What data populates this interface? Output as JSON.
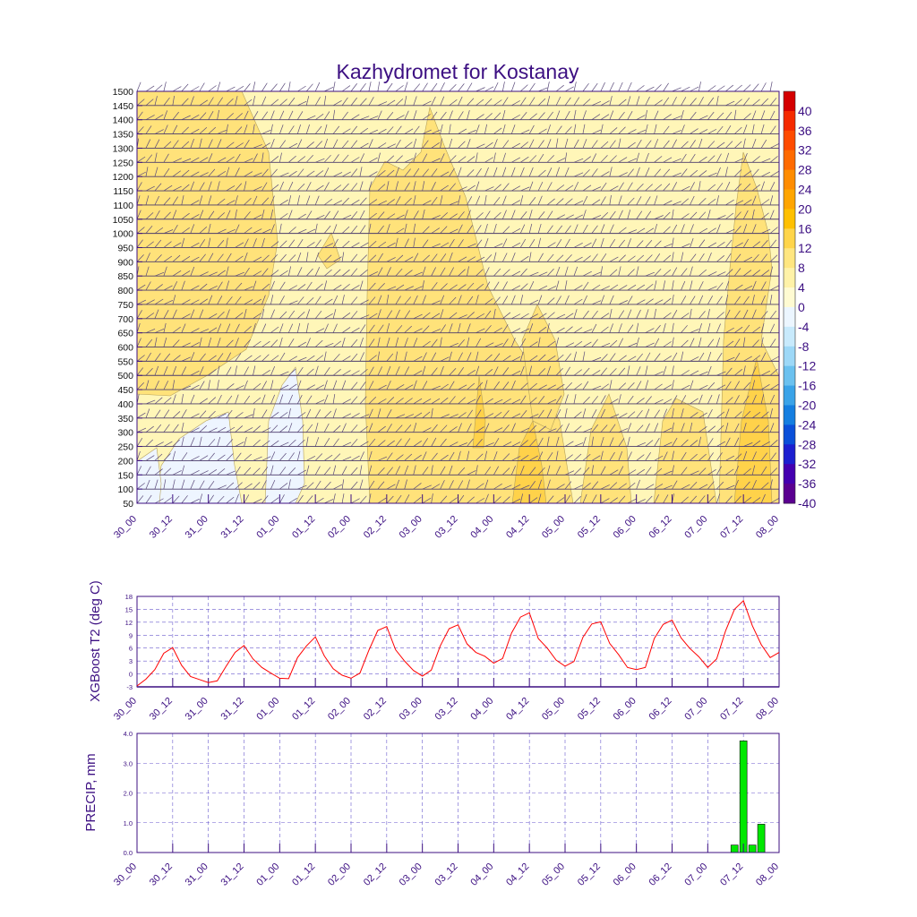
{
  "title": "Kazhydromet for Kostanay",
  "time_labels": [
    "30_00",
    "30_12",
    "31_00",
    "31_12",
    "01_00",
    "01_12",
    "02_00",
    "02_12",
    "03_00",
    "03_12",
    "04_00",
    "04_12",
    "05_00",
    "05_12",
    "06_00",
    "06_12",
    "07_00",
    "07_12",
    "08_00"
  ],
  "chart_data": [
    {
      "type": "heatmap",
      "description_kind": "time-height cross section",
      "y_ticks": [
        50,
        100,
        150,
        200,
        250,
        300,
        350,
        400,
        450,
        500,
        550,
        600,
        650,
        700,
        750,
        800,
        850,
        900,
        950,
        1000,
        1050,
        1100,
        1150,
        1200,
        1250,
        1300,
        1350,
        1400,
        1450,
        1500
      ],
      "ylim": [
        50,
        1500
      ],
      "colorbar_levels": [
        "40",
        "36",
        "32",
        "28",
        "24",
        "20",
        "16",
        "12",
        "8",
        "4",
        "0",
        "-4",
        "-8",
        "-12",
        "-16",
        "-20",
        "-24",
        "-28",
        "-32",
        "-36",
        "-40"
      ],
      "colorbar_colors": [
        "#d40000",
        "#f52a00",
        "#ff4b00",
        "#ff6a00",
        "#ff8c00",
        "#ffa500",
        "#ffc000",
        "#ffd54a",
        "#ffe680",
        "#fff2a8",
        "#fffbd2",
        "#ecf6ff",
        "#c8eafc",
        "#9dd8f7",
        "#6bc1ef",
        "#3aa3e8",
        "#147ee0",
        "#0a4fd9",
        "#1c1fd0",
        "#4400b0",
        "#5a0090"
      ]
    },
    {
      "type": "line",
      "ylabel": "XGBoost T2 (deg C)",
      "yticks": [
        "18",
        "15",
        "12",
        "9",
        "6",
        "3",
        "0",
        "-3"
      ],
      "ylim": [
        -3,
        18
      ],
      "series": [
        {
          "color": "#ff0000",
          "x": [
            0,
            0.25,
            0.5,
            0.75,
            1,
            1.25,
            1.5,
            1.75,
            2,
            2.25,
            2.5,
            2.75,
            3,
            3.25,
            3.5,
            3.75,
            4,
            4.25,
            4.5,
            4.75,
            5,
            5.25,
            5.5,
            5.75,
            6,
            6.25,
            6.5,
            6.75,
            7,
            7.25,
            7.5,
            7.75,
            8,
            8.25,
            8.5,
            8.75,
            9,
            9.25,
            9.5,
            9.75,
            10,
            10.25,
            10.5,
            10.75,
            11,
            11.25,
            11.5,
            11.75,
            12,
            12.25,
            12.5,
            12.75,
            13,
            13.25,
            13.5,
            13.75,
            14,
            14.25,
            14.5,
            14.75,
            15,
            15.25,
            15.5,
            15.75,
            16,
            16.25,
            16.5,
            16.75,
            17,
            17.25,
            17.5,
            17.75,
            18
          ],
          "values": [
            -2.8,
            -1.2,
            1.0,
            4.8,
            6.1,
            2.0,
            -0.6,
            -1.3,
            -2.0,
            -1.6,
            1.8,
            5.0,
            6.6,
            3.5,
            1.5,
            0.2,
            -1.0,
            -1.1,
            3.8,
            6.5,
            8.6,
            4.2,
            1.2,
            -0.3,
            -1.0,
            0.2,
            5.5,
            10.1,
            11.0,
            5.6,
            3.0,
            0.8,
            -0.5,
            0.9,
            6.5,
            10.5,
            11.4,
            7.0,
            5.0,
            4.1,
            2.5,
            3.6,
            9.5,
            13.2,
            14.2,
            8.2,
            6.0,
            3.2,
            1.8,
            2.9,
            8.5,
            11.6,
            12.1,
            7.1,
            4.5,
            1.5,
            1.0,
            1.5,
            8.2,
            11.5,
            12.5,
            8.4,
            5.9,
            4.0,
            1.5,
            3.5,
            10.0,
            15.0,
            17.0,
            11.2,
            6.8,
            3.8,
            5.0
          ]
        }
      ]
    },
    {
      "type": "bar",
      "ylabel": "PRECIP, mm",
      "yticks": [
        "4.0",
        "3.0",
        "2.0",
        "1.0",
        "0.0"
      ],
      "ylim": [
        0,
        4
      ],
      "bar_color": "#00e800",
      "x": [
        16.75,
        17.0,
        17.25,
        17.5
      ],
      "values": [
        0.25,
        3.75,
        0.25,
        0.95
      ]
    }
  ]
}
